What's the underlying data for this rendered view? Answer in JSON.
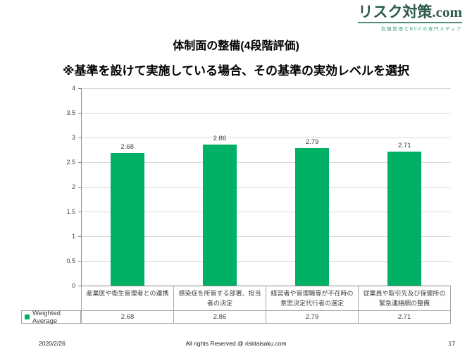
{
  "logo": {
    "title": "リスク対策.com",
    "tagline": "危機管理とBCPの専門メディア",
    "brand_color": "#2d5b4b",
    "accent_color": "#4f8e70"
  },
  "header": {
    "title": "体制面の整備(4段階評価)",
    "subtitle": "※基準を設けて実施している場合、その基準の実効レベルを選択"
  },
  "chart_data": {
    "type": "bar",
    "title": "",
    "xlabel": "",
    "ylabel": "",
    "categories": [
      "産業医や衛生管理者との連携",
      "感染症を所管する部署、担当者の決定",
      "経営者や管理職等が不在時の意思決定代行者の選定",
      "従業員や取引先及び保健所の緊急連絡網の整備"
    ],
    "series": [
      {
        "name": "Weighted Average",
        "values": [
          2.68,
          2.86,
          2.79,
          2.71
        ]
      }
    ],
    "data_labels": [
      "2.68",
      "2.86",
      "2.79",
      "2.71"
    ],
    "ylim": [
      0,
      4
    ],
    "ytick_step": 0.5,
    "grid": true,
    "legend_position": "bottom-left-table",
    "bar_color": "#00b064"
  },
  "table": {
    "legend_label": "Weighted Average",
    "values": [
      "2.68",
      "2.86",
      "2.79",
      "2.71"
    ]
  },
  "footer": {
    "date": "2020/2/26",
    "copyright": "All rights Reserved @ risktaisaku.com",
    "page": "17"
  }
}
